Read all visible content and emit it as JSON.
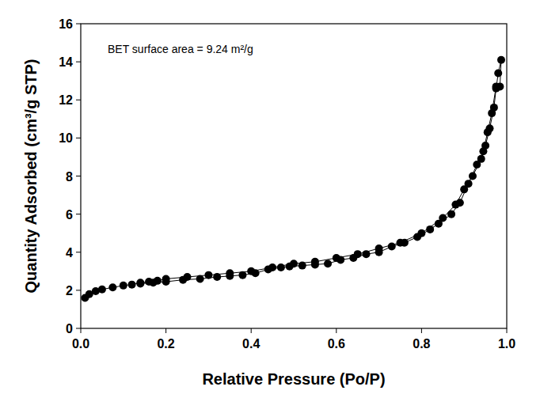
{
  "chart_data": {
    "type": "line",
    "marker": "circle",
    "line_style": "solid",
    "color": "#000000",
    "annotations": [
      "BET surface area = 9.24 m²/g"
    ],
    "x_label": "Relative Pressure (Po/P)",
    "y_label": "Quantity Adsorbed (cm³/g STP)",
    "xlim": [
      0,
      1
    ],
    "ylim": [
      0,
      16
    ],
    "xticks": [
      {
        "value": 0,
        "label": "0.0"
      },
      0.2,
      0.4,
      0.6,
      0.8,
      {
        "value": 1,
        "label": "1.0"
      }
    ],
    "yticks": [
      0,
      2,
      4,
      6,
      8,
      10,
      12,
      14,
      16
    ],
    "grid": false,
    "x": [
      0.01,
      0.02,
      0.035,
      0.05,
      0.075,
      0.1,
      0.12,
      0.14,
      0.16,
      0.18,
      0.2,
      0.25,
      0.3,
      0.35,
      0.4,
      0.45,
      0.5,
      0.55,
      0.6,
      0.65,
      0.7,
      0.75,
      0.8,
      0.85,
      0.88,
      0.9,
      0.92,
      0.94,
      0.95,
      0.96,
      0.97,
      0.975,
      0.98,
      0.987,
      0.984,
      0.975,
      0.965,
      0.955,
      0.945,
      0.93,
      0.91,
      0.89,
      0.87,
      0.84,
      0.82,
      0.79,
      0.76,
      0.73,
      0.7,
      0.67,
      0.64,
      0.61,
      0.58,
      0.55,
      0.52,
      0.49,
      0.47,
      0.44,
      0.41,
      0.38,
      0.35,
      0.32,
      0.28,
      0.24,
      0.2,
      0.17,
      0.14
    ],
    "values": [
      1.6,
      1.8,
      1.95,
      2.05,
      2.15,
      2.25,
      2.3,
      2.4,
      2.45,
      2.5,
      2.6,
      2.7,
      2.8,
      2.9,
      3.0,
      3.2,
      3.4,
      3.5,
      3.7,
      3.9,
      4.2,
      4.5,
      5.0,
      5.8,
      6.5,
      7.3,
      8.0,
      8.9,
      9.6,
      10.5,
      11.6,
      12.6,
      13.4,
      14.1,
      12.7,
      12.7,
      11.3,
      10.3,
      9.3,
      8.6,
      7.6,
      6.6,
      6.0,
      5.5,
      5.2,
      4.8,
      4.5,
      4.3,
      4.0,
      3.9,
      3.7,
      3.6,
      3.4,
      3.35,
      3.3,
      3.25,
      3.2,
      3.1,
      2.9,
      2.8,
      2.75,
      2.7,
      2.6,
      2.55,
      2.45,
      2.4,
      2.35
    ]
  }
}
